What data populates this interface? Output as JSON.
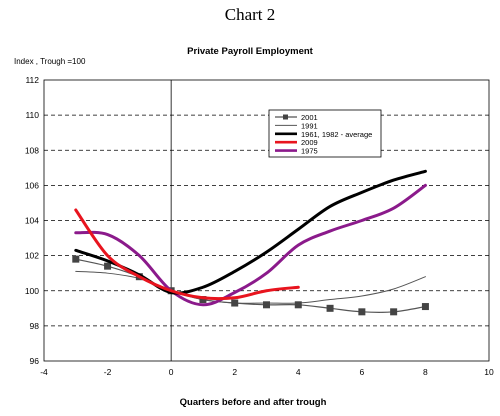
{
  "header": "Chart 2",
  "chart_data": {
    "type": "line",
    "title": "Private Payroll Employment",
    "ylabel": "Index , Trough =100",
    "xlabel": "Quarters before and after trough",
    "xlim": [
      -4,
      10
    ],
    "ylim": [
      96,
      112
    ],
    "xticks": [
      -4,
      -2,
      0,
      2,
      4,
      6,
      8,
      10
    ],
    "yticks": [
      96,
      98,
      100,
      102,
      104,
      106,
      108,
      110,
      112
    ],
    "grid": "horizontal dashed",
    "legend_position": "top-right",
    "series": [
      {
        "name": "2001",
        "color": "#555555",
        "marker": "square",
        "x": [
          -3,
          -2,
          -1,
          0,
          1,
          2,
          3,
          4,
          5,
          6,
          7,
          8
        ],
        "y": [
          101.8,
          101.4,
          100.8,
          100.0,
          99.5,
          99.3,
          99.2,
          99.2,
          99.0,
          98.8,
          98.8,
          99.1
        ]
      },
      {
        "name": "1991",
        "color": "#555555",
        "x": [
          -3,
          -2,
          -1,
          0,
          1,
          2,
          3,
          4,
          5,
          6,
          7,
          8
        ],
        "y": [
          101.1,
          101.0,
          100.7,
          100.0,
          99.5,
          99.3,
          99.3,
          99.3,
          99.5,
          99.7,
          100.1,
          100.8
        ]
      },
      {
        "name": "1961, 1982 - average",
        "color": "#000000",
        "x": [
          -3,
          -2,
          -1,
          0,
          1,
          2,
          3,
          4,
          5,
          6,
          7,
          8
        ],
        "y": [
          102.3,
          101.7,
          100.9,
          99.9,
          100.2,
          101.1,
          102.2,
          103.5,
          104.8,
          105.6,
          106.3,
          106.8
        ]
      },
      {
        "name": "2009",
        "color": "#e8141e",
        "x": [
          -3,
          -2,
          -1,
          0,
          1,
          2,
          3,
          4
        ],
        "y": [
          104.6,
          102.0,
          100.8,
          100.0,
          99.6,
          99.6,
          100.0,
          100.2
        ]
      },
      {
        "name": "1975",
        "color": "#8b1a8b",
        "x": [
          -3,
          -2,
          -1,
          0,
          1,
          2,
          3,
          4,
          5,
          6,
          7,
          8
        ],
        "y": [
          103.3,
          103.2,
          102.0,
          100.0,
          99.2,
          99.9,
          101.0,
          102.6,
          103.4,
          104.0,
          104.7,
          106.0
        ]
      }
    ]
  }
}
